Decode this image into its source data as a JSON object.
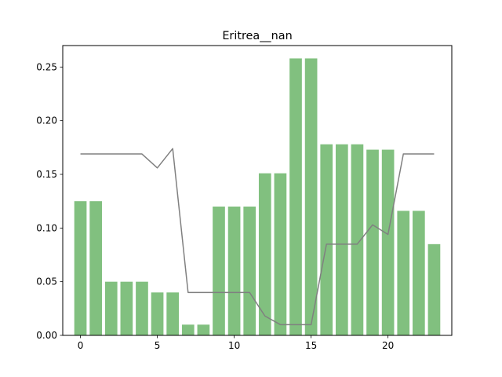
{
  "chart_data": {
    "type": "bar",
    "title": "Eritrea__nan",
    "xlabel": "",
    "ylabel": "",
    "xlim": [
      -1.15,
      24.15
    ],
    "ylim": [
      0,
      0.27
    ],
    "xticks": [
      0,
      5,
      10,
      15,
      20
    ],
    "yticks": [
      0.0,
      0.05,
      0.1,
      0.15,
      0.2,
      0.25
    ],
    "grid": false,
    "bar_color": "#81c07f",
    "line_color": "#808080",
    "x": [
      0,
      1,
      2,
      3,
      4,
      5,
      6,
      7,
      8,
      9,
      10,
      11,
      12,
      13,
      14,
      15,
      16,
      17,
      18,
      19,
      20,
      21,
      22,
      23
    ],
    "bars": [
      0.125,
      0.125,
      0.05,
      0.05,
      0.05,
      0.04,
      0.04,
      0.01,
      0.01,
      0.12,
      0.12,
      0.12,
      0.151,
      0.151,
      0.258,
      0.258,
      0.178,
      0.178,
      0.178,
      0.173,
      0.173,
      0.116,
      0.116,
      0.085
    ],
    "line": [
      0.169,
      0.169,
      0.169,
      0.169,
      0.169,
      0.156,
      0.174,
      0.04,
      0.04,
      0.04,
      0.04,
      0.04,
      0.018,
      0.01,
      0.01,
      0.01,
      0.085,
      0.085,
      0.085,
      0.103,
      0.094,
      0.169,
      0.169,
      0.169
    ]
  }
}
